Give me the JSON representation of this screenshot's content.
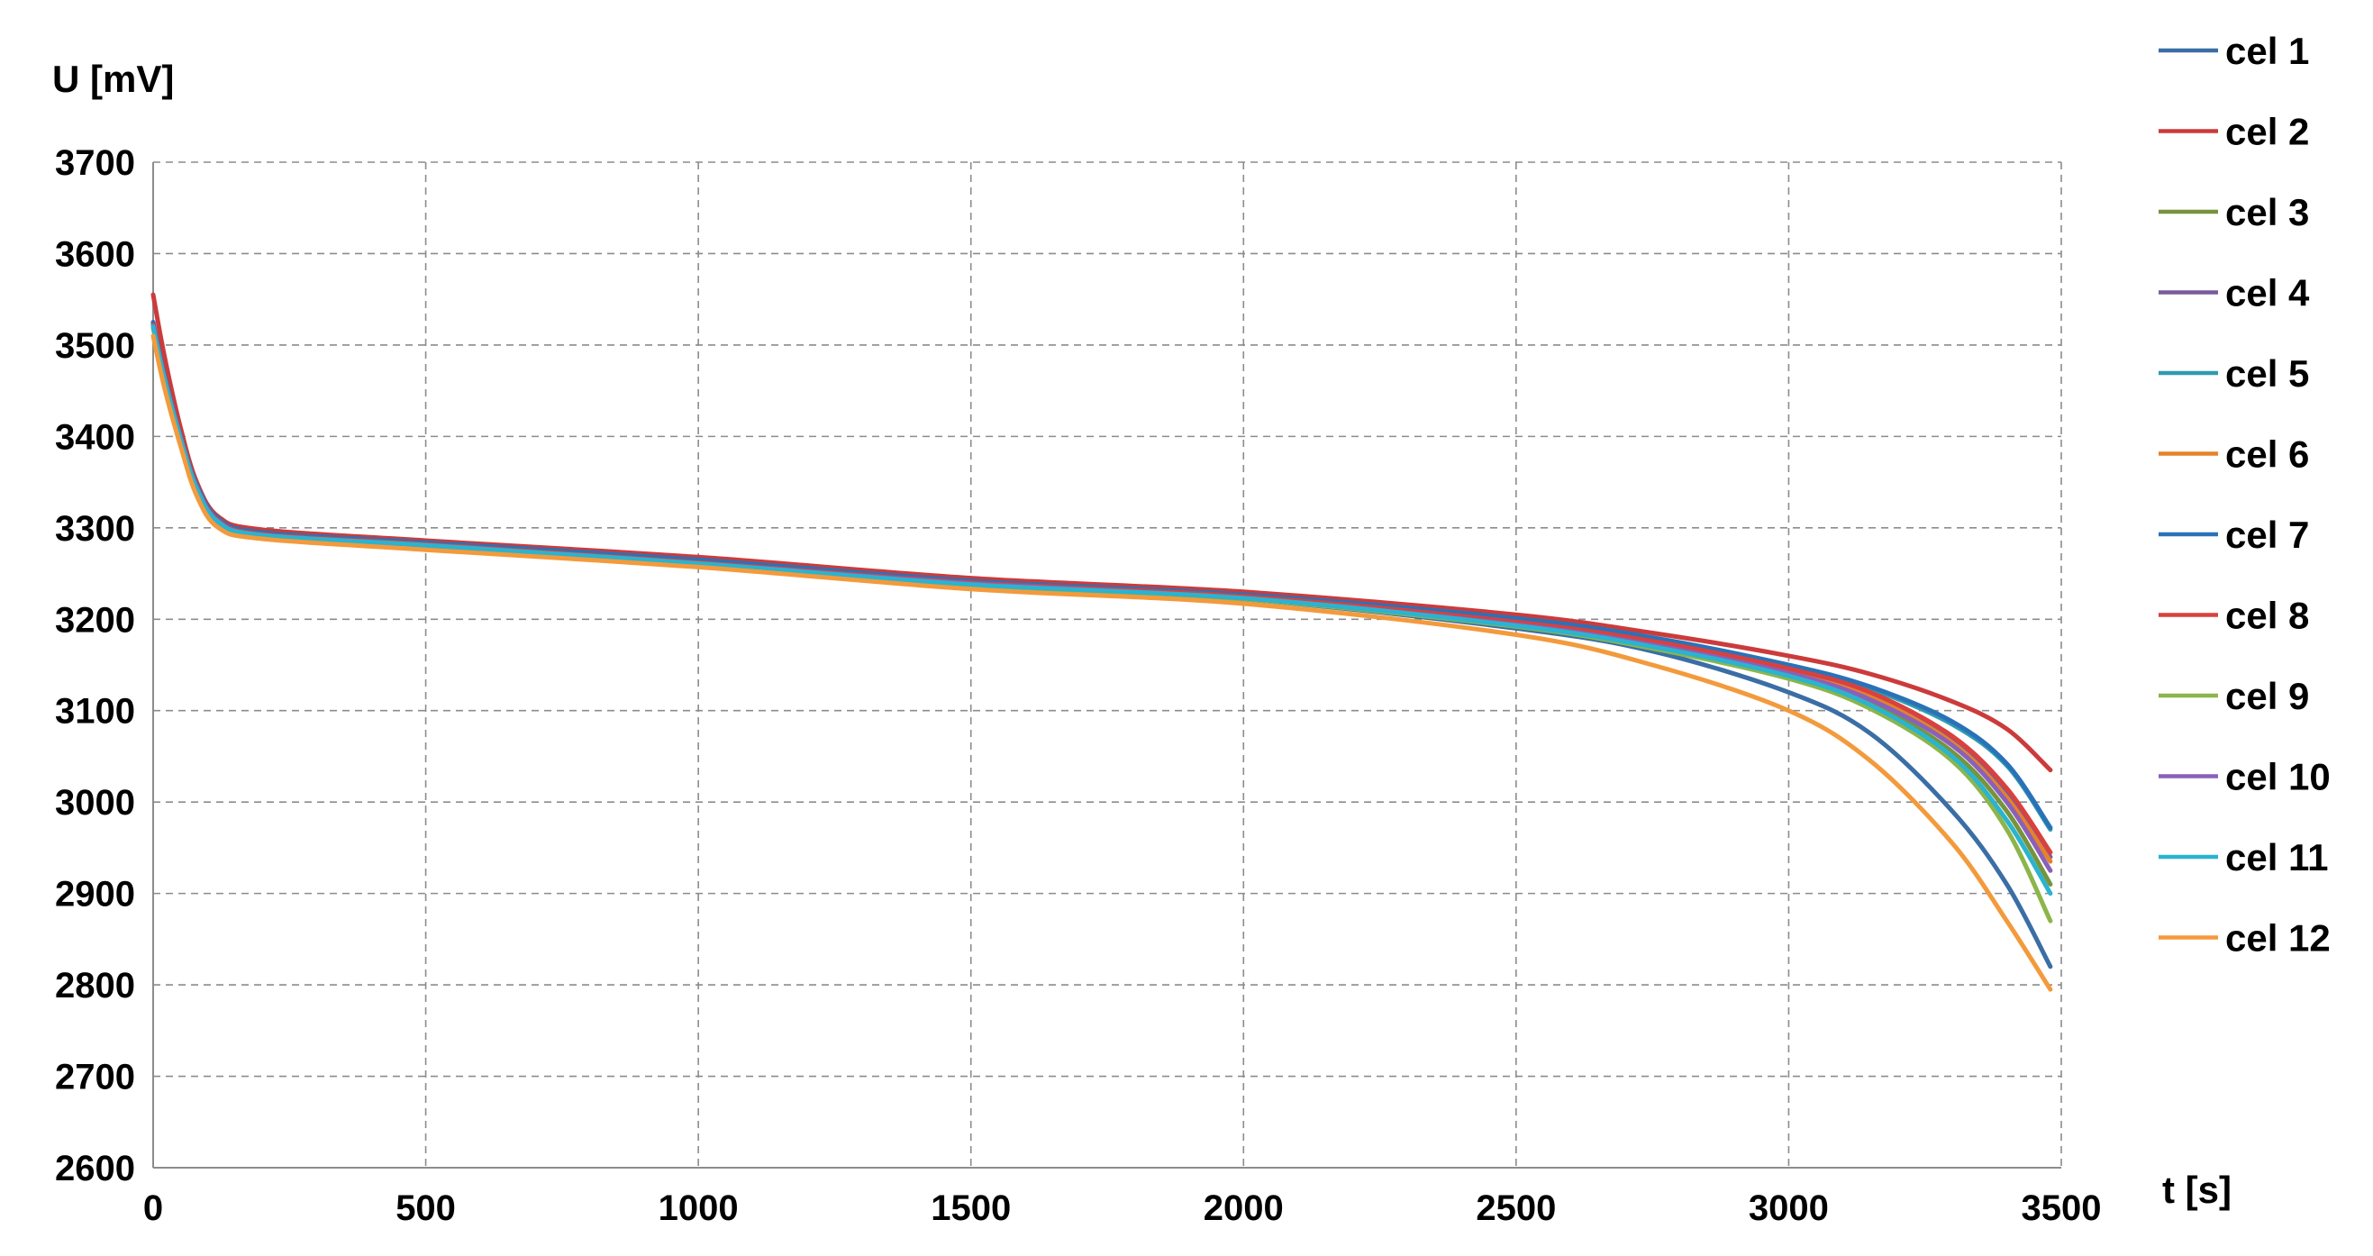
{
  "chart_data": {
    "type": "line",
    "title": "",
    "xlabel": "t [s]",
    "ylabel": "U [mV]",
    "xlim": [
      0,
      3500
    ],
    "ylim": [
      2600,
      3700
    ],
    "xticks": [
      0,
      500,
      1000,
      1500,
      2000,
      2500,
      3000,
      3500
    ],
    "yticks": [
      2600,
      2700,
      2800,
      2900,
      3000,
      3100,
      3200,
      3300,
      3400,
      3500,
      3600,
      3700
    ],
    "grid": true,
    "legend_position": "right",
    "series": [
      {
        "name": "cel 1",
        "color": "#3a6ea5",
        "x": [
          0,
          20,
          50,
          80,
          120,
          200,
          500,
          1000,
          1500,
          2000,
          2500,
          2750,
          3000,
          3150,
          3300,
          3400,
          3480
        ],
        "y": [
          3525,
          3470,
          3400,
          3345,
          3308,
          3292,
          3280,
          3260,
          3238,
          3222,
          3190,
          3165,
          3120,
          3075,
          2990,
          2910,
          2820
        ]
      },
      {
        "name": "cel 2",
        "color": "#cc3b3b",
        "x": [
          0,
          20,
          50,
          80,
          120,
          200,
          500,
          1000,
          1500,
          2000,
          2500,
          2750,
          3000,
          3150,
          3300,
          3400,
          3480
        ],
        "y": [
          3555,
          3490,
          3410,
          3350,
          3312,
          3298,
          3286,
          3268,
          3245,
          3230,
          3205,
          3185,
          3160,
          3140,
          3110,
          3080,
          3035
        ]
      },
      {
        "name": "cel 3",
        "color": "#77933c",
        "x": [
          0,
          20,
          50,
          80,
          120,
          200,
          500,
          1000,
          1500,
          2000,
          2500,
          2750,
          3000,
          3150,
          3300,
          3400,
          3480
        ],
        "y": [
          3520,
          3465,
          3398,
          3343,
          3306,
          3292,
          3281,
          3261,
          3238,
          3223,
          3193,
          3170,
          3138,
          3108,
          3055,
          2990,
          2910
        ]
      },
      {
        "name": "cel 4",
        "color": "#7a5a9e",
        "x": [
          0,
          20,
          50,
          80,
          120,
          200,
          500,
          1000,
          1500,
          2000,
          2500,
          2750,
          3000,
          3150,
          3300,
          3400,
          3480
        ],
        "y": [
          3522,
          3467,
          3400,
          3345,
          3308,
          3293,
          3282,
          3262,
          3240,
          3224,
          3196,
          3175,
          3145,
          3118,
          3068,
          3010,
          2940
        ]
      },
      {
        "name": "cel 5",
        "color": "#2e9bb0",
        "x": [
          0,
          20,
          50,
          80,
          120,
          200,
          500,
          1000,
          1500,
          2000,
          2500,
          2750,
          3000,
          3150,
          3300,
          3400,
          3480
        ],
        "y": [
          3523,
          3468,
          3400,
          3346,
          3309,
          3294,
          3283,
          3264,
          3241,
          3226,
          3200,
          3178,
          3148,
          3124,
          3085,
          3040,
          2970
        ]
      },
      {
        "name": "cel 6",
        "color": "#e6822a",
        "x": [
          0,
          20,
          50,
          80,
          120,
          200,
          500,
          1000,
          1500,
          2000,
          2500,
          2750,
          3000,
          3150,
          3300,
          3400,
          3480
        ],
        "y": [
          3521,
          3466,
          3399,
          3344,
          3307,
          3292,
          3281,
          3261,
          3239,
          3223,
          3195,
          3173,
          3142,
          3115,
          3065,
          3005,
          2935
        ]
      },
      {
        "name": "cel 7",
        "color": "#2a72b8",
        "x": [
          0,
          20,
          50,
          80,
          120,
          200,
          500,
          1000,
          1500,
          2000,
          2500,
          2750,
          3000,
          3150,
          3300,
          3400,
          3480
        ],
        "y": [
          3524,
          3469,
          3401,
          3347,
          3310,
          3295,
          3284,
          3265,
          3242,
          3227,
          3201,
          3180,
          3150,
          3126,
          3088,
          3042,
          2972
        ]
      },
      {
        "name": "cel 8",
        "color": "#d9413f",
        "x": [
          0,
          20,
          50,
          80,
          120,
          200,
          500,
          1000,
          1500,
          2000,
          2500,
          2750,
          3000,
          3150,
          3300,
          3400,
          3480
        ],
        "y": [
          3522,
          3467,
          3400,
          3345,
          3308,
          3293,
          3282,
          3262,
          3240,
          3225,
          3197,
          3176,
          3146,
          3120,
          3072,
          3015,
          2945
        ]
      },
      {
        "name": "cel 9",
        "color": "#8cb54a",
        "x": [
          0,
          20,
          50,
          80,
          120,
          200,
          500,
          1000,
          1500,
          2000,
          2500,
          2750,
          3000,
          3150,
          3300,
          3400,
          3480
        ],
        "y": [
          3519,
          3464,
          3397,
          3342,
          3305,
          3291,
          3280,
          3260,
          3237,
          3222,
          3192,
          3168,
          3135,
          3102,
          3045,
          2970,
          2870
        ]
      },
      {
        "name": "cel 10",
        "color": "#8a60ba",
        "x": [
          0,
          20,
          50,
          80,
          120,
          200,
          500,
          1000,
          1500,
          2000,
          2500,
          2750,
          3000,
          3150,
          3300,
          3400,
          3480
        ],
        "y": [
          3521,
          3466,
          3399,
          3344,
          3307,
          3292,
          3281,
          3261,
          3239,
          3223,
          3194,
          3172,
          3141,
          3112,
          3062,
          3000,
          2925
        ]
      },
      {
        "name": "cel 11",
        "color": "#2bb3cf",
        "x": [
          0,
          20,
          50,
          80,
          120,
          200,
          500,
          1000,
          1500,
          2000,
          2500,
          2750,
          3000,
          3150,
          3300,
          3400,
          3480
        ],
        "y": [
          3520,
          3465,
          3398,
          3343,
          3306,
          3292,
          3281,
          3261,
          3238,
          3223,
          3193,
          3170,
          3138,
          3106,
          3050,
          2980,
          2900
        ]
      },
      {
        "name": "cel 12",
        "color": "#f39a3c",
        "x": [
          0,
          20,
          50,
          80,
          120,
          200,
          500,
          1000,
          1500,
          2000,
          2500,
          2750,
          3000,
          3150,
          3300,
          3400,
          3480
        ],
        "y": [
          3510,
          3455,
          3390,
          3335,
          3300,
          3288,
          3276,
          3257,
          3233,
          3217,
          3183,
          3150,
          3100,
          3045,
          2955,
          2870,
          2795
        ]
      }
    ]
  }
}
